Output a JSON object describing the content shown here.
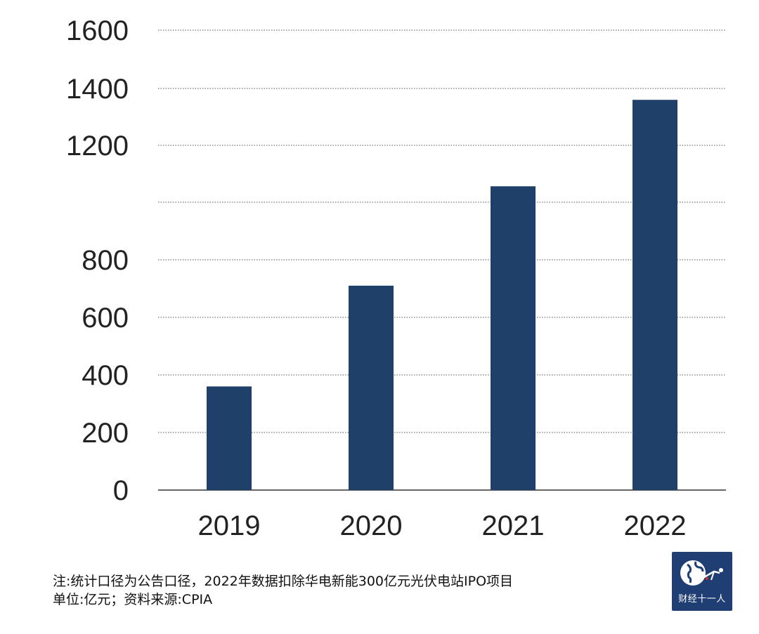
{
  "chart_data": {
    "type": "bar",
    "categories": [
      "2019",
      "2020",
      "2021",
      "2022"
    ],
    "values": [
      360,
      710,
      1056,
      1360
    ],
    "y_tick_labels": [
      "0",
      "200",
      "400",
      "600",
      "800",
      "1200",
      "1400",
      "1600"
    ],
    "grid": true,
    "bar_color": "#1f4068"
  },
  "notes": {
    "line1": "注:统计口径为公告口径，2022年数据扣除华电新能300亿元光伏电站IPO项目",
    "line2": "单位:亿元；资料来源:CPIA"
  },
  "logo": {
    "text": "财经十一人",
    "icon": "globe-icon",
    "color": "#1f3e73"
  }
}
